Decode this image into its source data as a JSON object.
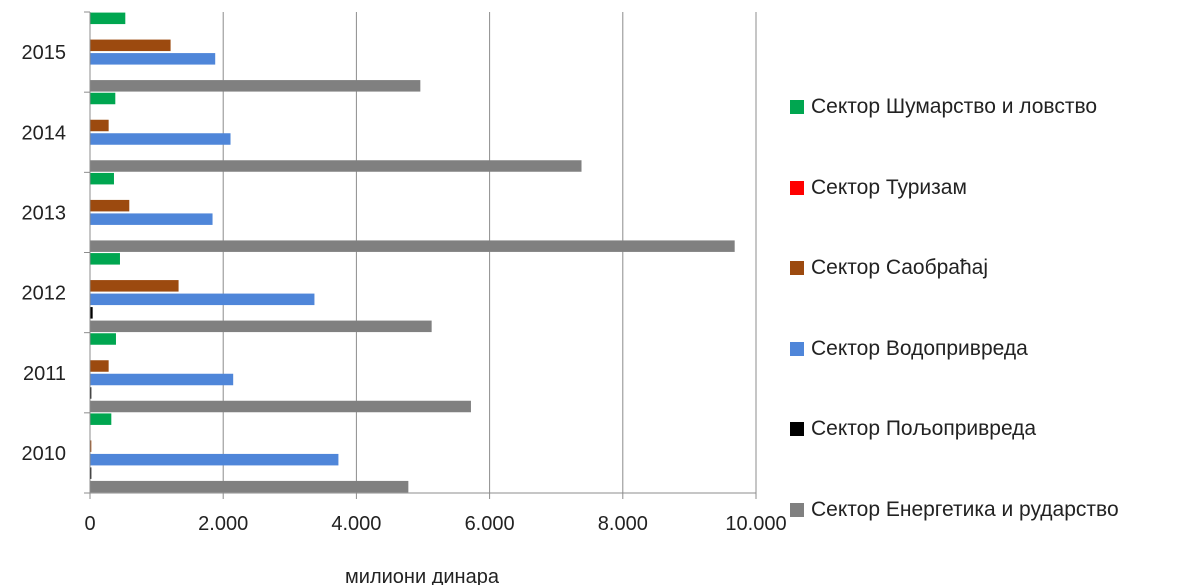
{
  "chart_data": {
    "type": "bar",
    "orientation": "horizontal",
    "categories": [
      "2010",
      "2011",
      "2012",
      "2013",
      "2014",
      "2015"
    ],
    "series": [
      {
        "name": "Сектор Шумарство и ловство",
        "color": "#00A650",
        "values": [
          320,
          390,
          450,
          360,
          380,
          530
        ]
      },
      {
        "name": "Сектор Туризам",
        "color": "#FF0000",
        "values": [
          0,
          0,
          0,
          0,
          0,
          0
        ]
      },
      {
        "name": "Сектор Саобраћај",
        "color": "#9C4A0F",
        "values": [
          20,
          280,
          1330,
          590,
          280,
          1210
        ]
      },
      {
        "name": "Сектор Водопривреда",
        "color": "#4F86D9",
        "values": [
          3730,
          2150,
          3370,
          1840,
          2110,
          1880
        ]
      },
      {
        "name": "Сектор Пољопривреда",
        "color": "#000000",
        "values": [
          20,
          20,
          40,
          0,
          0,
          0
        ]
      },
      {
        "name": "Сектор Енергетика и рударство",
        "color": "#808080",
        "values": [
          4780,
          5720,
          5130,
          9680,
          7380,
          4960
        ]
      }
    ],
    "xlim": [
      0,
      10000
    ],
    "xticks": [
      "0",
      "2.000",
      "4.000",
      "6.000",
      "8.000",
      "10.000"
    ],
    "xlabel": "милиони динара",
    "ylabel": "",
    "grid": true,
    "legend_position": "right"
  }
}
